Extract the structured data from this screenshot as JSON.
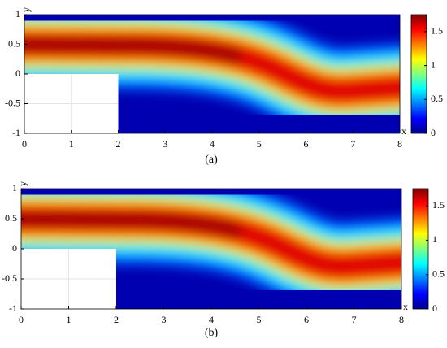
{
  "chart_data": [
    {
      "type": "field",
      "caption": "(a)",
      "xlabel": "x",
      "ylabel": "y",
      "xlim": [
        0,
        8
      ],
      "xticks": [
        0,
        1,
        2,
        3,
        4,
        5,
        6,
        7,
        8
      ],
      "ylim": [
        -1,
        1
      ],
      "yticks": [
        -1,
        -0.5,
        0,
        0.5,
        1
      ],
      "clim": [
        0,
        1.75
      ],
      "cticks": [
        0,
        0.5,
        1,
        1.5
      ],
      "colormap": "jet"
    },
    {
      "type": "field",
      "caption": "(b)",
      "xlabel": "x",
      "ylabel": "y",
      "xlim": [
        0,
        8
      ],
      "xticks": [
        0,
        1,
        2,
        3,
        4,
        5,
        6,
        7,
        8
      ],
      "ylim": [
        -1,
        1
      ],
      "yticks": [
        -1,
        -0.5,
        0,
        0.5,
        1
      ],
      "clim": [
        0,
        1.75
      ],
      "cticks": [
        0,
        0.5,
        1,
        1.5
      ],
      "colormap": "jet"
    }
  ]
}
